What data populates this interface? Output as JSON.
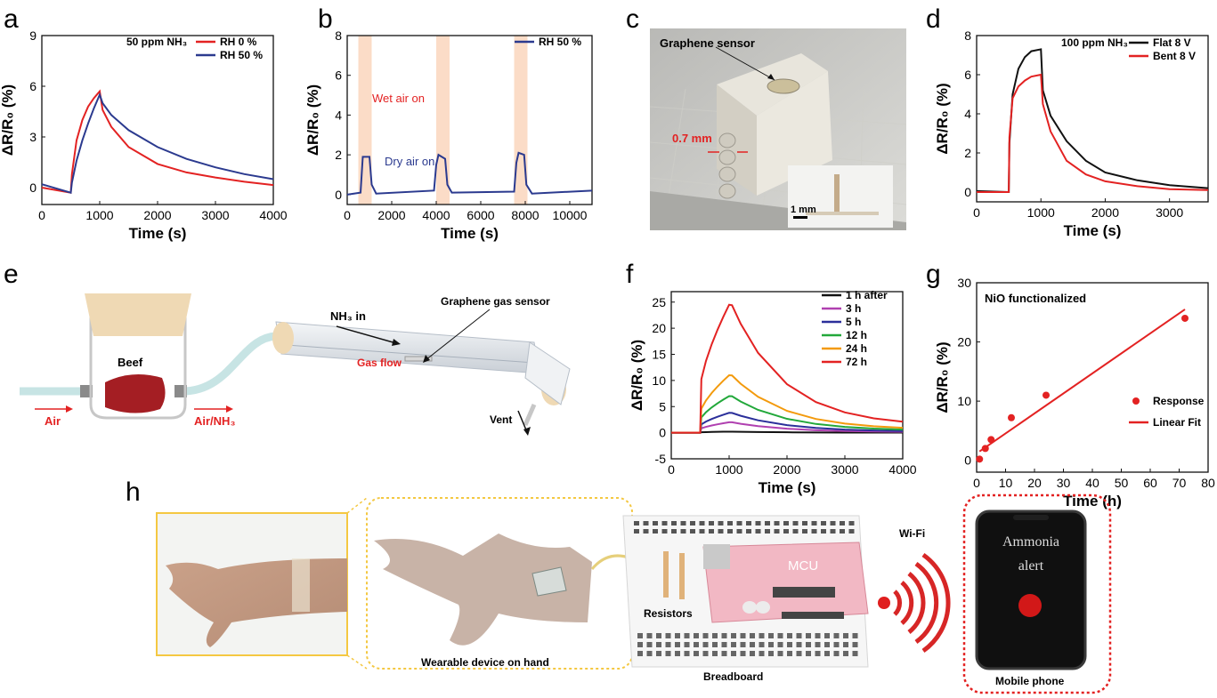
{
  "panels": {
    "a": "a",
    "b": "b",
    "c": "c",
    "d": "d",
    "e": "e",
    "f": "f",
    "g": "g",
    "h": "h"
  },
  "chart_data": [
    {
      "id": "a",
      "type": "line",
      "xlabel": "Time (s)",
      "ylabel": "ΔR/R₀ (%)",
      "xlim": [
        0,
        4000
      ],
      "ylim": [
        -1,
        9
      ],
      "xticks": [
        0,
        1000,
        2000,
        3000,
        4000
      ],
      "yticks": [
        0,
        3,
        6,
        9
      ],
      "annotations": [
        "50 ppm NH₃"
      ],
      "legend": "top-right",
      "series": [
        {
          "name": "RH 0 %",
          "color": "#e32222",
          "x": [
            0,
            500,
            520,
            600,
            700,
            800,
            900,
            1000,
            1050,
            1200,
            1500,
            2000,
            2500,
            3000,
            3500,
            4000
          ],
          "y": [
            0,
            -0.3,
            0.8,
            2.8,
            4.0,
            4.8,
            5.3,
            5.7,
            4.6,
            3.6,
            2.4,
            1.4,
            0.9,
            0.6,
            0.35,
            0.15
          ]
        },
        {
          "name": "RH 50 %",
          "color": "#2b3a8f",
          "x": [
            0,
            500,
            520,
            600,
            700,
            800,
            900,
            1000,
            1050,
            1200,
            1500,
            2000,
            2500,
            3000,
            3500,
            4000
          ],
          "y": [
            0.2,
            -0.3,
            0.3,
            1.6,
            2.8,
            3.8,
            4.7,
            5.5,
            5.0,
            4.3,
            3.4,
            2.4,
            1.7,
            1.2,
            0.8,
            0.5
          ]
        }
      ]
    },
    {
      "id": "b",
      "type": "line",
      "xlabel": "Time (s)",
      "ylabel": "ΔR/R₀ (%)",
      "xlim": [
        0,
        11000
      ],
      "ylim": [
        -0.5,
        8
      ],
      "xticks": [
        0,
        2000,
        4000,
        6000,
        8000,
        10000
      ],
      "yticks": [
        0,
        2,
        4,
        6,
        8
      ],
      "annotations": [
        "Wet air on",
        "Dry air on"
      ],
      "shaded": [
        [
          500,
          1100
        ],
        [
          4000,
          4600
        ],
        [
          7500,
          8100
        ]
      ],
      "series": [
        {
          "name": "RH 50 %",
          "color": "#2b3a8f",
          "x": [
            0,
            600,
            700,
            1000,
            1100,
            1300,
            3900,
            4000,
            4100,
            4400,
            4500,
            4700,
            7500,
            7600,
            7700,
            7950,
            8050,
            8300,
            11000
          ],
          "y": [
            0,
            0.1,
            1.9,
            1.9,
            0.5,
            0.05,
            0.2,
            1.5,
            2.0,
            1.8,
            0.5,
            0.1,
            0.15,
            1.6,
            2.1,
            2.0,
            0.5,
            0.05,
            0.2
          ]
        }
      ]
    },
    {
      "id": "d",
      "type": "line",
      "xlabel": "Time (s)",
      "ylabel": "ΔR/R₀ (%)",
      "xlim": [
        0,
        3600
      ],
      "ylim": [
        -0.5,
        8
      ],
      "xticks": [
        0,
        1000,
        2000,
        3000
      ],
      "yticks": [
        0,
        2,
        4,
        6,
        8
      ],
      "annotations": [
        "100 ppm NH₃"
      ],
      "series": [
        {
          "name": "Flat 8 V",
          "color": "#111111",
          "x": [
            0,
            500,
            510,
            560,
            650,
            750,
            850,
            1000,
            1030,
            1150,
            1400,
            1700,
            2000,
            2500,
            3000,
            3600
          ],
          "y": [
            0.05,
            0,
            2.5,
            5.0,
            6.3,
            6.9,
            7.2,
            7.3,
            5.2,
            3.9,
            2.6,
            1.6,
            1.0,
            0.6,
            0.35,
            0.2
          ]
        },
        {
          "name": "Bent 8 V",
          "color": "#e32222",
          "x": [
            0,
            500,
            510,
            560,
            650,
            750,
            850,
            1000,
            1030,
            1150,
            1400,
            1700,
            2000,
            2500,
            3000,
            3600
          ],
          "y": [
            0,
            0,
            2.8,
            4.8,
            5.4,
            5.7,
            5.9,
            6.0,
            4.5,
            3.1,
            1.6,
            0.9,
            0.55,
            0.3,
            0.15,
            0.1
          ]
        }
      ]
    },
    {
      "id": "f",
      "type": "line",
      "xlabel": "Time (s)",
      "ylabel": "ΔR/R₀ (%)",
      "xlim": [
        0,
        4000
      ],
      "ylim": [
        -5,
        27
      ],
      "xticks": [
        0,
        1000,
        2000,
        3000,
        4000
      ],
      "yticks": [
        -5,
        0,
        5,
        10,
        15,
        20,
        25
      ],
      "series": [
        {
          "name": "1 h after",
          "color": "#111111",
          "peak": 0.2
        },
        {
          "name": "3 h",
          "color": "#b040b0",
          "peak": 2.0
        },
        {
          "name": "5 h",
          "color": "#2b2f9a",
          "peak": 3.8
        },
        {
          "name": "12 h",
          "color": "#22a83a",
          "peak": 7.0
        },
        {
          "name": "24 h",
          "color": "#f39a0c",
          "peak": 11.0
        },
        {
          "name": "72 h",
          "color": "#e32222",
          "peak": 24.5
        }
      ]
    },
    {
      "id": "g",
      "type": "scatter",
      "title": "NiO functionalized",
      "xlabel": "Time (h)",
      "ylabel": "ΔR/R₀ (%)",
      "xlim": [
        0,
        80
      ],
      "ylim": [
        -2,
        30
      ],
      "xticks": [
        0,
        10,
        20,
        30,
        40,
        50,
        60,
        70,
        80
      ],
      "yticks": [
        0,
        10,
        20,
        30
      ],
      "series": [
        {
          "name": "Response",
          "color": "#e32222",
          "x": [
            1,
            3,
            5,
            12,
            24,
            72
          ],
          "y": [
            0.2,
            2.0,
            3.5,
            7.2,
            11.0,
            24.0
          ]
        },
        {
          "name": "Linear Fit",
          "color": "#e32222",
          "x": [
            1,
            72
          ],
          "y": [
            1.5,
            25.5
          ]
        }
      ]
    }
  ],
  "photo_c": {
    "label_sensor": "Graphene sensor",
    "label_thickness": "0.7 mm",
    "label_scale": "1 mm"
  },
  "schematic_e": {
    "beef": "Beef",
    "air": "Air",
    "air_nh3": "Air/NH₃",
    "nh3_in": "NH₃ in",
    "sensor": "Graphene gas sensor",
    "gas_flow": "Gas flow",
    "vent": "Vent"
  },
  "schematic_h": {
    "wearable": "Wearable device on hand",
    "resistors": "Resistors",
    "mcu": "MCU",
    "breadboard": "Breadboard",
    "wifi": "Wi-Fi",
    "phone_line1": "Ammonia",
    "phone_line2": "alert",
    "mobile": "Mobile phone"
  }
}
